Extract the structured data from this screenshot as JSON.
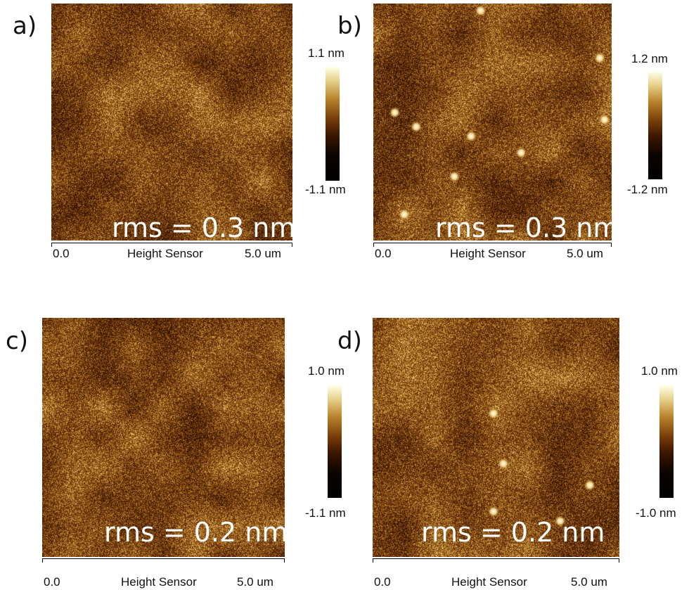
{
  "figure": {
    "panels": [
      {
        "label": "a)",
        "rms": "rms = 0.3 nm",
        "axis": {
          "min": "0.0",
          "title": "Height Sensor",
          "max": "5.0 um"
        },
        "colorbar": {
          "max": "1.1 nm",
          "min": "-1.1 nm"
        },
        "image": {
          "seed": 11,
          "blobs": []
        }
      },
      {
        "label": "b)",
        "rms": "rms = 0.3 nm",
        "axis": {
          "min": "0.0",
          "title": "Height Sensor",
          "max": "5.0 um"
        },
        "colorbar": {
          "max": "1.2 nm",
          "min": "-1.2 nm"
        },
        "image": {
          "seed": 23,
          "blobs": [
            [
              0.09,
              0.46
            ],
            [
              0.18,
              0.52
            ],
            [
              0.45,
              0.03
            ],
            [
              0.97,
              0.49
            ],
            [
              0.34,
              0.73
            ],
            [
              0.41,
              0.56
            ],
            [
              0.62,
              0.63
            ],
            [
              0.13,
              0.89
            ],
            [
              0.95,
              0.23
            ]
          ]
        }
      },
      {
        "label": "c)",
        "rms": "rms = 0.2 nm",
        "axis": {
          "min": "0.0",
          "title": "Height Sensor",
          "max": "5.0 um"
        },
        "colorbar": {
          "max": "1.0 nm",
          "min": "-1.1 nm"
        },
        "image": {
          "seed": 37,
          "blobs": []
        }
      },
      {
        "label": "d)",
        "rms": "rms = 0.2 nm",
        "axis": {
          "min": "0.0",
          "title": "Height Sensor",
          "max": "5.0 um"
        },
        "colorbar": {
          "max": "1.0 nm",
          "min": "-1.0 nm"
        },
        "image": {
          "seed": 51,
          "blobs": [
            [
              0.49,
              0.4
            ],
            [
              0.53,
              0.61
            ],
            [
              0.49,
              0.81
            ],
            [
              0.76,
              0.85
            ],
            [
              0.88,
              0.7
            ]
          ]
        }
      }
    ]
  }
}
